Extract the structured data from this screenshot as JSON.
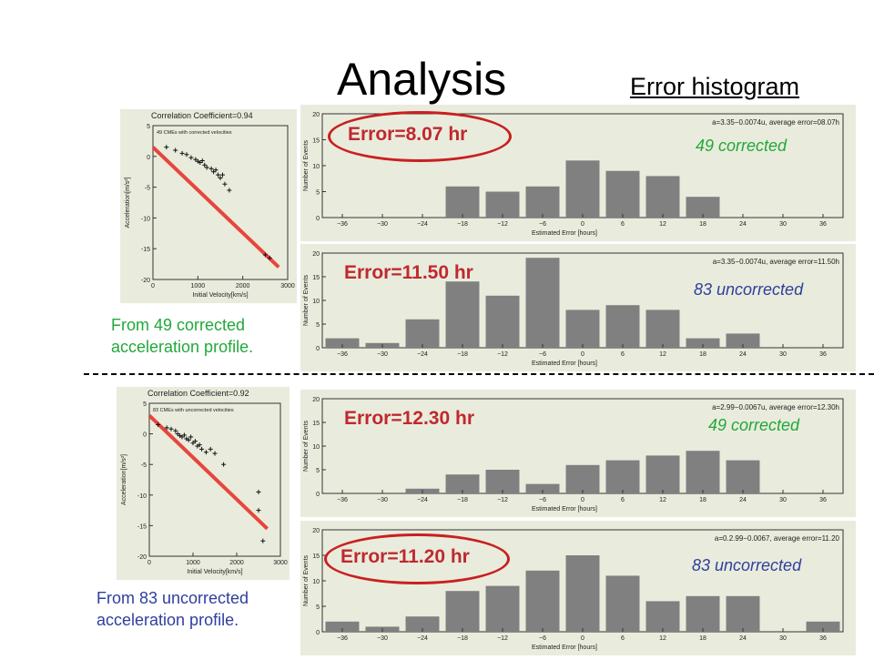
{
  "slide": {
    "title": "Analysis",
    "subtitle": "Error histogram",
    "left_captions": [
      {
        "line1": "From 49 corrected",
        "line2": "acceleration profile."
      },
      {
        "line1": "From 83 uncorrected",
        "line2": "acceleration profile."
      }
    ],
    "colors": {
      "panel_bg": "#e9ecdc",
      "bar": "#808080",
      "fit_line": "#e8453c",
      "highlight": "#c82020",
      "green": "#22a83a",
      "blue": "#2f3f9e"
    }
  },
  "chart_data": [
    {
      "type": "scatter",
      "title": "Correlation Coefficient=0.94",
      "subtitle": "49 CMEs with corrected velocities",
      "xlabel": "Initial Velocity[km/s]",
      "ylabel": "Acceleration[m/s²]",
      "xlim": [
        0,
        3000
      ],
      "ylim": [
        -20,
        5
      ],
      "xticks": [
        "0",
        "1000",
        "2000",
        "3000"
      ],
      "yticks": [
        "-20",
        "-15",
        "-10",
        "-5",
        "0",
        "5"
      ],
      "fit_line": {
        "x1": 0,
        "y1": 1.5,
        "x2": 2800,
        "y2": -18
      },
      "points": [
        [
          300,
          1.5
        ],
        [
          500,
          1
        ],
        [
          650,
          0.5
        ],
        [
          750,
          0.3
        ],
        [
          850,
          -0.2
        ],
        [
          950,
          -0.5
        ],
        [
          1000,
          -0.8
        ],
        [
          1050,
          -1
        ],
        [
          1100,
          -0.7
        ],
        [
          1150,
          -1.4
        ],
        [
          1200,
          -1.8
        ],
        [
          1300,
          -2
        ],
        [
          1350,
          -2.5
        ],
        [
          1400,
          -2.2
        ],
        [
          1450,
          -3
        ],
        [
          1500,
          -3.5
        ],
        [
          1550,
          -3
        ],
        [
          1600,
          -4.5
        ],
        [
          1700,
          -5.5
        ],
        [
          2500,
          -16
        ],
        [
          2600,
          -16.5
        ]
      ]
    },
    {
      "type": "scatter",
      "title": "Correlation Coefficient=0.92",
      "subtitle": "83 CMEs with uncorrected velocities",
      "xlabel": "Initial Velocity[km/s]",
      "ylabel": "Acceleration[m/s²]",
      "xlim": [
        0,
        3000
      ],
      "ylim": [
        -20,
        5
      ],
      "xticks": [
        "0",
        "1000",
        "2000",
        "3000"
      ],
      "yticks": [
        "-20",
        "-15",
        "-10",
        "-5",
        "0",
        "5"
      ],
      "fit_line": {
        "x1": 0,
        "y1": 3,
        "x2": 2700,
        "y2": -15.5
      },
      "points": [
        [
          200,
          1.5
        ],
        [
          400,
          1
        ],
        [
          500,
          0.8
        ],
        [
          600,
          0.5
        ],
        [
          650,
          0
        ],
        [
          700,
          -0.3
        ],
        [
          750,
          -0.5
        ],
        [
          800,
          -0.2
        ],
        [
          850,
          -0.8
        ],
        [
          900,
          -1
        ],
        [
          950,
          -0.5
        ],
        [
          1000,
          -1.5
        ],
        [
          1050,
          -1.2
        ],
        [
          1100,
          -2
        ],
        [
          1150,
          -1.8
        ],
        [
          1200,
          -2.5
        ],
        [
          1300,
          -3
        ],
        [
          1400,
          -2.5
        ],
        [
          1500,
          -3.2
        ],
        [
          1700,
          -5
        ],
        [
          2500,
          -9.5
        ],
        [
          2500,
          -12.5
        ],
        [
          2600,
          -17.5
        ]
      ]
    },
    {
      "type": "bar",
      "label": "Error=8.07 hr",
      "tag": "49 corrected",
      "annotation": "a=3.35−0.0074u, average error=08.07h",
      "xlabel": "Estimated Error [hours]",
      "ylabel": "Number of Events",
      "xticks": [
        "−36",
        "−30",
        "−24",
        "−18",
        "−12",
        "−6",
        "0",
        "6",
        "12",
        "18",
        "24",
        "30",
        "36"
      ],
      "yticks": [
        "0",
        "5",
        "10",
        "15",
        "20"
      ],
      "ylim": [
        0,
        20
      ],
      "categories": [
        "−36",
        "−30",
        "−24",
        "−18",
        "−12",
        "−6",
        "0",
        "6",
        "12",
        "18",
        "24",
        "30",
        "36"
      ],
      "values": [
        0,
        0,
        0,
        6,
        5,
        6,
        11,
        9,
        8,
        4,
        0,
        0,
        0
      ]
    },
    {
      "type": "bar",
      "label": "Error=11.50 hr",
      "tag": "83 uncorrected",
      "annotation": "a=3.35−0.0074u, average error=11.50h",
      "xlabel": "Estimated Error [hours]",
      "ylabel": "Number of Events",
      "xticks": [
        "−36",
        "−30",
        "−24",
        "−18",
        "−12",
        "−6",
        "0",
        "6",
        "12",
        "18",
        "24",
        "30",
        "36"
      ],
      "yticks": [
        "0",
        "5",
        "10",
        "15",
        "20"
      ],
      "ylim": [
        0,
        20
      ],
      "categories": [
        "−36",
        "−30",
        "−24",
        "−18",
        "−12",
        "−6",
        "0",
        "6",
        "12",
        "18",
        "24",
        "30",
        "36"
      ],
      "values": [
        2,
        1,
        6,
        14,
        11,
        19,
        8,
        9,
        8,
        2,
        3,
        0,
        0
      ]
    },
    {
      "type": "bar",
      "label": "Error=12.30 hr",
      "tag": "49 corrected",
      "annotation": "a=2.99−0.0067u, average error=12.30h",
      "xlabel": "Estimated Error [hours]",
      "ylabel": "Number of Events",
      "xticks": [
        "−36",
        "−30",
        "−24",
        "−18",
        "−12",
        "−6",
        "0",
        "6",
        "12",
        "18",
        "24",
        "30",
        "36"
      ],
      "yticks": [
        "0",
        "5",
        "10",
        "15",
        "20"
      ],
      "ylim": [
        0,
        20
      ],
      "categories": [
        "−36",
        "−30",
        "−24",
        "−18",
        "−12",
        "−6",
        "0",
        "6",
        "12",
        "18",
        "24",
        "30",
        "36"
      ],
      "values": [
        0,
        0,
        1,
        4,
        5,
        2,
        6,
        7,
        8,
        9,
        7,
        0,
        0
      ]
    },
    {
      "type": "bar",
      "label": "Error=11.20 hr",
      "tag": "83 uncorrected",
      "annotation": "a=0.2.99−0.0067, average error=11.20",
      "xlabel": "Estimated Error [hours]",
      "ylabel": "Number of Events",
      "xticks": [
        "−36",
        "−30",
        "−24",
        "−18",
        "−12",
        "−6",
        "0",
        "6",
        "12",
        "18",
        "24",
        "30",
        "36"
      ],
      "yticks": [
        "0",
        "5",
        "10",
        "15",
        "20"
      ],
      "ylim": [
        0,
        20
      ],
      "categories": [
        "−36",
        "−30",
        "−24",
        "−18",
        "−12",
        "−6",
        "0",
        "6",
        "12",
        "18",
        "24",
        "30",
        "36"
      ],
      "values": [
        2,
        1,
        3,
        8,
        9,
        12,
        15,
        11,
        6,
        7,
        7,
        0,
        2
      ]
    }
  ]
}
